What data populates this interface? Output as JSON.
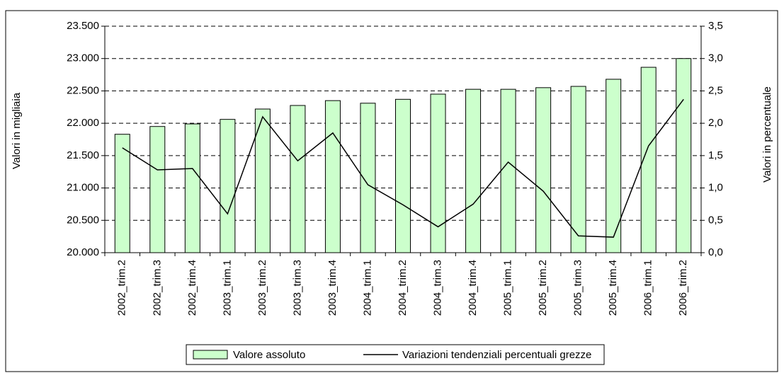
{
  "chart_data": {
    "type": "bar-line",
    "ylabel": "Valori in migliaia",
    "y2label": "Valori in percentuale",
    "categories": [
      "2002_trim.2",
      "2002_trim.3",
      "2002_trim.4",
      "2003_trim.1",
      "2003_trim.2",
      "2003_trim.3",
      "2003_trim.4",
      "2004_trim.1",
      "2004_trim.2",
      "2004_trim.3",
      "2004_trim.4",
      "2005_trim.1",
      "2005_trim.2",
      "2005_trim.3",
      "2005_trim.4",
      "2006_trim.1",
      "2006_trim.2"
    ],
    "series": [
      {
        "name": "Valore assoluto",
        "type": "bar",
        "color": "#ccffcc",
        "values": [
          21830,
          21950,
          21990,
          22060,
          22220,
          22275,
          22350,
          22310,
          22370,
          22450,
          22525,
          22525,
          22550,
          22570,
          22680,
          22865,
          23000
        ]
      },
      {
        "name": "Variazioni tendenziali percentuali grezze",
        "type": "line",
        "axis": "y2",
        "color": "#000000",
        "values": [
          1.62,
          1.28,
          1.3,
          0.6,
          2.1,
          1.42,
          1.85,
          1.05,
          0.74,
          0.4,
          0.75,
          1.4,
          0.95,
          0.26,
          0.24,
          1.65,
          2.37
        ]
      }
    ],
    "ylim": [
      20000,
      23500
    ],
    "yticks": [
      {
        "value": 20000,
        "label": "20.000"
      },
      {
        "value": 20500,
        "label": "20.500"
      },
      {
        "value": 21000,
        "label": "21.000"
      },
      {
        "value": 21500,
        "label": "21.500"
      },
      {
        "value": 22000,
        "label": "22.000"
      },
      {
        "value": 22500,
        "label": "22.500"
      },
      {
        "value": 23000,
        "label": "23.000"
      },
      {
        "value": 23500,
        "label": "23.500"
      }
    ],
    "y2lim": [
      0,
      3.5
    ],
    "y2ticks": [
      {
        "value": 0,
        "label": "0,0"
      },
      {
        "value": 0.5,
        "label": "0,5"
      },
      {
        "value": 1,
        "label": "1,0"
      },
      {
        "value": 1.5,
        "label": "1,5"
      },
      {
        "value": 2,
        "label": "2,0"
      },
      {
        "value": 2.5,
        "label": "2,5"
      },
      {
        "value": 3,
        "label": "3,0"
      },
      {
        "value": 3.5,
        "label": "3,5"
      }
    ],
    "grid": true
  }
}
